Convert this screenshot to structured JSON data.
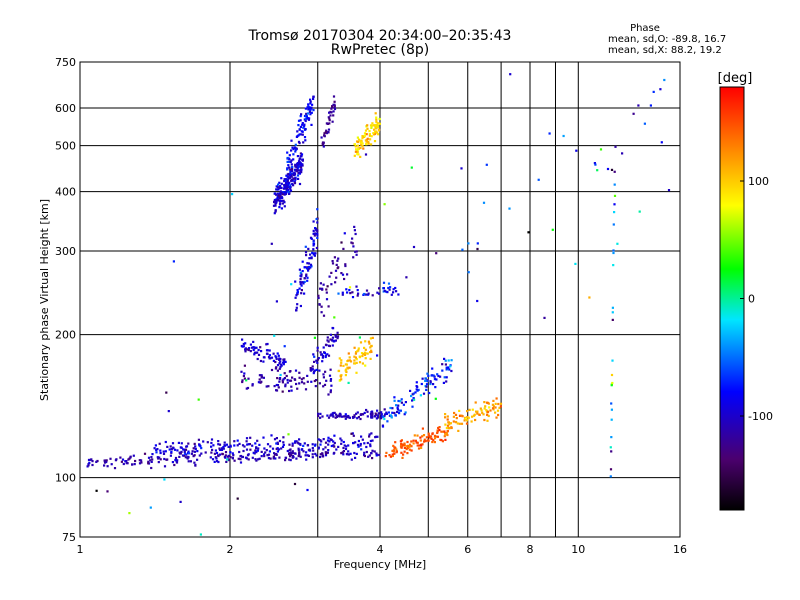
{
  "chart_data": {
    "type": "scatter",
    "title": "Tromsø 20170304 20:34:00–20:35:43",
    "subtitle": "RwPretec (8p)",
    "xlabel": "Frequency [MHz]",
    "ylabel": "Stationary phase Virtual Height [km]",
    "x_scale": "log",
    "y_scale": "log",
    "xlim": [
      1,
      16
    ],
    "ylim": [
      75,
      750
    ],
    "x_ticks": [
      1,
      2,
      4,
      6,
      8,
      10,
      16
    ],
    "x_tick_labels": [
      "1",
      "2",
      "4",
      "6",
      "8",
      "10",
      "16"
    ],
    "x_minor_ticks": [
      3,
      5,
      7,
      9
    ],
    "y_ticks": [
      75,
      100,
      200,
      300,
      400,
      500,
      600,
      750
    ],
    "y_tick_labels": [
      "75",
      "100",
      "200",
      "300",
      "400",
      "500",
      "600",
      "750"
    ],
    "grid": true,
    "info": {
      "header": "Phase",
      "line_o": "mean, sd,O: -89.8, 16.7",
      "line_x": "mean, sd,X:  88.2, 19.2"
    },
    "colorbar": {
      "title": "[deg]",
      "range": [
        -180,
        180
      ],
      "ticks": [
        -100,
        0,
        100
      ],
      "tick_labels": [
        "-100",
        "0",
        "100"
      ],
      "colormap": "rainbow: black -> purple -> blue -> cyan -> green -> yellow -> orange -> red"
    },
    "clusters": [
      {
        "n": 240,
        "x": [
          1.03,
          4.0
        ],
        "y_at": [
          108,
          113
        ],
        "spread": 0.015,
        "phase": [
          -110,
          12
        ]
      },
      {
        "n": 220,
        "x": [
          1.4,
          4.0
        ],
        "y_at": [
          114,
          120
        ],
        "spread": 0.02,
        "phase": [
          -100,
          15
        ]
      },
      {
        "n": 110,
        "x": [
          4.1,
          5.5
        ],
        "y_at": [
          113,
          125
        ],
        "spread": 0.02,
        "phase": [
          145,
          12
        ]
      },
      {
        "n": 90,
        "x": [
          5.4,
          7.0
        ],
        "y_at": [
          130,
          142
        ],
        "spread": 0.025,
        "phase": [
          115,
          15
        ]
      },
      {
        "n": 80,
        "x": [
          3.0,
          4.2
        ],
        "y_at": [
          135,
          136
        ],
        "spread": 0.01,
        "phase": [
          -105,
          10
        ]
      },
      {
        "n": 100,
        "x": [
          4.0,
          5.6
        ],
        "y_at": [
          130,
          175
        ],
        "spread": 0.03,
        "phase": [
          -70,
          25
        ]
      },
      {
        "n": 90,
        "x": [
          2.1,
          3.2
        ],
        "y_at": [
          160,
          160
        ],
        "spread": 0.03,
        "phase": [
          -115,
          10
        ]
      },
      {
        "n": 70,
        "x": [
          2.1,
          2.6
        ],
        "y_at": [
          190,
          175
        ],
        "spread": 0.02,
        "phase": [
          -100,
          15
        ]
      },
      {
        "n": 60,
        "x": [
          2.9,
          3.3
        ],
        "y_at": [
          170,
          200
        ],
        "spread": 0.03,
        "phase": [
          -100,
          12
        ]
      },
      {
        "n": 70,
        "x": [
          3.3,
          3.9
        ],
        "y_at": [
          165,
          190
        ],
        "spread": 0.03,
        "phase": [
          105,
          12
        ]
      },
      {
        "n": 90,
        "x": [
          2.7,
          3.0
        ],
        "y_at": [
          230,
          330
        ],
        "spread": 0.05,
        "phase": [
          -90,
          20
        ]
      },
      {
        "n": 50,
        "x": [
          3.0,
          3.6
        ],
        "y_at": [
          235,
          320
        ],
        "spread": 0.05,
        "phase": [
          -120,
          10
        ]
      },
      {
        "n": 40,
        "x": [
          3.3,
          4.4
        ],
        "y_at": [
          245,
          250
        ],
        "spread": 0.015,
        "phase": [
          -80,
          20
        ]
      },
      {
        "n": 220,
        "x": [
          2.45,
          2.8
        ],
        "y_at": [
          380,
          460
        ],
        "spread": 0.03,
        "phase": [
          -95,
          15
        ]
      },
      {
        "n": 90,
        "x": [
          2.6,
          2.95
        ],
        "y_at": [
          460,
          620
        ],
        "spread": 0.04,
        "phase": [
          -85,
          15
        ]
      },
      {
        "n": 40,
        "x": [
          3.05,
          3.25
        ],
        "y_at": [
          500,
          620
        ],
        "spread": 0.03,
        "phase": [
          -120,
          10
        ]
      },
      {
        "n": 90,
        "x": [
          3.55,
          4.0
        ],
        "y_at": [
          490,
          560
        ],
        "spread": 0.03,
        "phase": [
          100,
          15
        ]
      },
      {
        "n": 25,
        "x": [
          11.6,
          11.9
        ],
        "y_at": [
          100,
          680
        ],
        "spread": 0.08,
        "phase": [
          -50,
          60
        ]
      },
      {
        "n": 90,
        "x": [
          1.0,
          16.0
        ],
        "y_at": [
          80,
          600
        ],
        "spread": 0.35,
        "phase": [
          -60,
          70
        ]
      }
    ]
  }
}
